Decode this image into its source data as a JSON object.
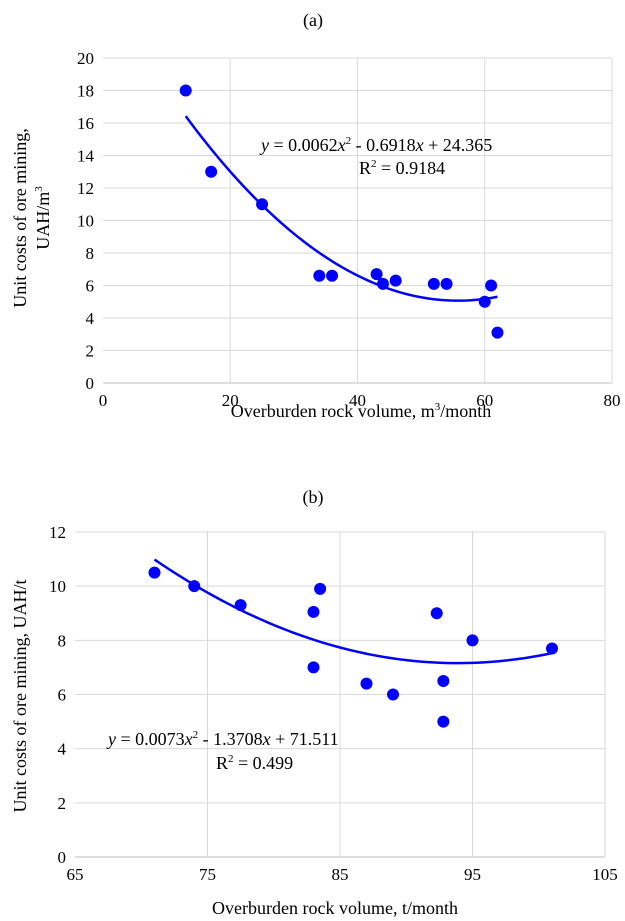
{
  "colors": {
    "marker": "#0000ff",
    "trendline": "#0000ff",
    "grid": "#d9d9d9",
    "text": "#000000"
  },
  "chart_data": [
    {
      "panel_label": "(a)",
      "type": "scatter",
      "x": [
        13,
        17,
        25,
        34,
        36,
        43,
        44,
        46,
        52,
        54,
        60,
        61,
        62
      ],
      "y": [
        18,
        13,
        11,
        6.6,
        6.6,
        6.7,
        6.1,
        6.3,
        6.1,
        6.1,
        5.0,
        6.0,
        3.1
      ],
      "xlabel": "Overburden rock volume, m³/month",
      "ylabel": "Unit costs of ore mining, UAH/m³",
      "xlim": [
        0,
        80
      ],
      "ylim": [
        0,
        20
      ],
      "x_ticks": [
        0,
        20,
        40,
        60,
        80
      ],
      "y_ticks": [
        0,
        2,
        4,
        6,
        8,
        10,
        12,
        14,
        16,
        18,
        20
      ],
      "grid": true,
      "trendline": {
        "type": "polynomial",
        "order": 2,
        "coefficients": [
          0.0062,
          -0.6918,
          24.365
        ],
        "x_range": [
          13,
          62
        ]
      },
      "equation": {
        "p1": "y",
        "p2": " = 0.0062",
        "p3": "x",
        "p4": "2",
        "p5": " - 0.6918",
        "p6": "x",
        "p7": " + 24.365"
      },
      "r2": {
        "p1": "R",
        "p2": "2",
        "p3": " = 0.9184"
      }
    },
    {
      "panel_label": "(b)",
      "type": "scatter",
      "x": [
        71,
        74,
        77.5,
        83,
        83,
        83.5,
        87,
        89,
        92.3,
        92.8,
        92.8,
        95,
        101
      ],
      "y": [
        10.5,
        10,
        9.3,
        9.05,
        7.0,
        9.9,
        6.4,
        6.0,
        9.0,
        6.5,
        5.0,
        8.0,
        7.7
      ],
      "xlabel": "Overburden rock volume, t/month",
      "ylabel": "Unit costs of ore mining, UAH/t",
      "xlim": [
        65,
        105
      ],
      "ylim": [
        0,
        12
      ],
      "x_ticks": [
        65,
        75,
        85,
        95,
        105
      ],
      "y_ticks": [
        0,
        2,
        4,
        6,
        8,
        10,
        12
      ],
      "grid": true,
      "trendline": {
        "type": "polynomial",
        "order": 2,
        "coefficients": [
          0.0073,
          -1.3708,
          71.511
        ],
        "x_range": [
          71,
          101
        ]
      },
      "equation": {
        "p1": "y",
        "p2": " = 0.0073",
        "p3": "x",
        "p4": "2",
        "p5": " - 1.3708",
        "p6": "x",
        "p7": " + 71.511"
      },
      "r2": {
        "p1": "R",
        "p2": "2",
        "p3": " = 0.499"
      }
    }
  ]
}
